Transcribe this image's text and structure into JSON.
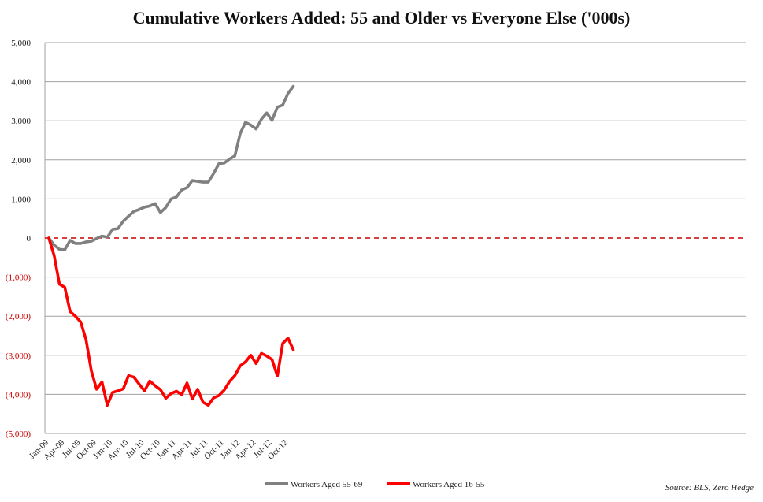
{
  "chart_data": {
    "type": "line",
    "title": "Cumulative Workers Added: 55 and Older vs Everyone Else ('000s)",
    "ylim": [
      -5000,
      5000
    ],
    "yticks": [
      5000,
      4000,
      3000,
      2000,
      1000,
      0,
      -1000,
      -2000,
      -3000,
      -4000,
      -5000
    ],
    "ytick_labels": [
      "5,000",
      "4,000",
      "3,000",
      "2,000",
      "1,000",
      "0",
      "(1,000)",
      "(2,000)",
      "(3,000)",
      "(4,000)",
      "(5,000)"
    ],
    "xtick_labels": [
      "Jan-09",
      "Apr-09",
      "Jul-09",
      "Oct-09",
      "Jan-10",
      "Apr-10",
      "Jul-10",
      "Oct-10",
      "Jan-11",
      "Apr-11",
      "Jul-11",
      "Oct-11",
      "Jan-12",
      "Apr-12",
      "Jul-12",
      "Oct-12"
    ],
    "x_start_label": "Jan-09",
    "grid": true,
    "legend_position": "bottom",
    "zero_line": {
      "style": "dashed",
      "color": "#cc0000"
    },
    "series": [
      {
        "name": "Workers Aged 55-69",
        "color": "#808080",
        "values": [
          0,
          -180,
          -290,
          -300,
          -60,
          -140,
          -140,
          -100,
          -80,
          -10,
          50,
          20,
          220,
          240,
          430,
          560,
          680,
          730,
          790,
          820,
          880,
          650,
          780,
          1000,
          1050,
          1230,
          1290,
          1470,
          1450,
          1430,
          1430,
          1650,
          1900,
          1920,
          2020,
          2100,
          2670,
          2960,
          2890,
          2790,
          3040,
          3200,
          3010,
          3350,
          3400,
          3700,
          3880
        ]
      },
      {
        "name": "Workers Aged 16-55",
        "color": "#ff0000",
        "values": [
          0,
          -450,
          -1180,
          -1260,
          -1880,
          -2000,
          -2150,
          -2600,
          -3400,
          -3870,
          -3680,
          -4280,
          -3950,
          -3910,
          -3860,
          -3520,
          -3560,
          -3740,
          -3910,
          -3660,
          -3780,
          -3880,
          -4100,
          -3980,
          -3920,
          -4010,
          -3710,
          -4120,
          -3870,
          -4200,
          -4280,
          -4090,
          -4030,
          -3890,
          -3670,
          -3520,
          -3270,
          -3170,
          -3000,
          -3210,
          -2950,
          -3020,
          -3110,
          -3530,
          -2700,
          -2560,
          -2860
        ]
      }
    ],
    "source": "Source: BLS, Zero Hedge"
  }
}
